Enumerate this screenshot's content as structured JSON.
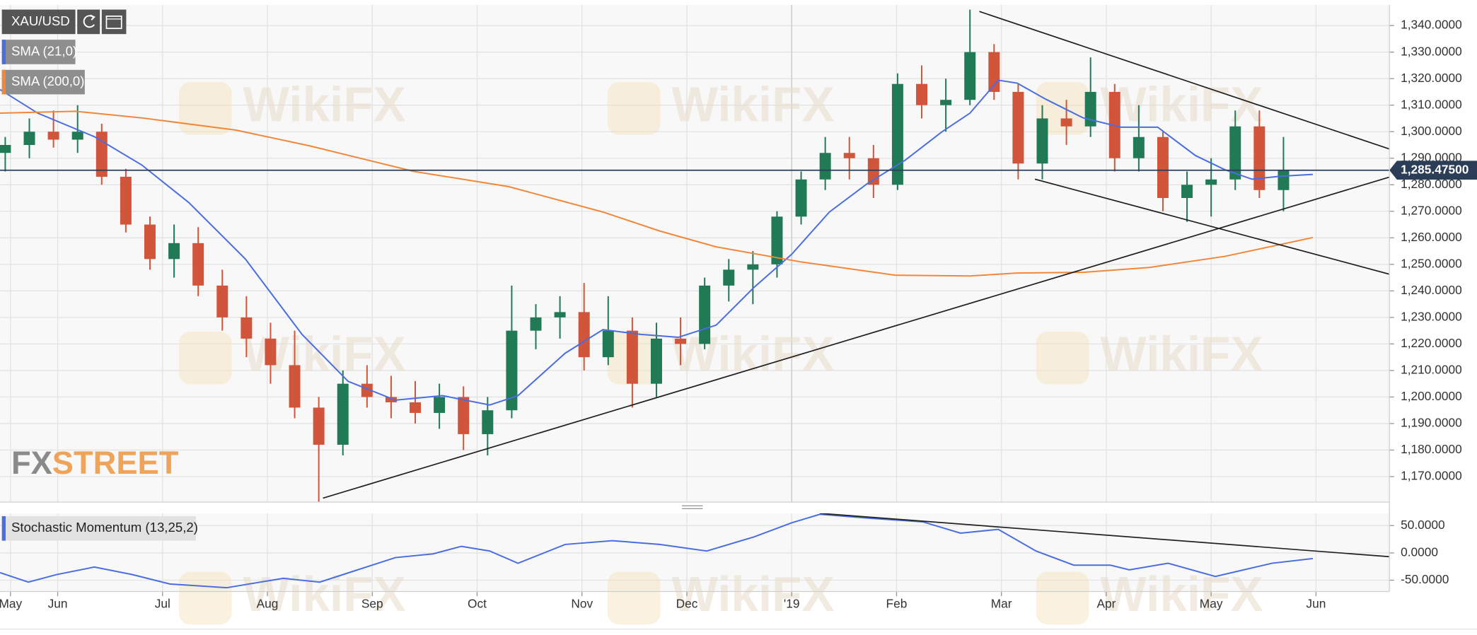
{
  "chart_data": [
    {
      "type": "candlestick",
      "title": "XAU/USD",
      "x": [
        0.5,
        0.73,
        0.96,
        1.19,
        1.42,
        1.65,
        1.88,
        2.11,
        2.34,
        2.57,
        2.8,
        3.03,
        3.26,
        3.49,
        3.72,
        3.95,
        4.18,
        4.41,
        4.64,
        4.87,
        5.1,
        5.33,
        5.56,
        5.79,
        6.02,
        6.25,
        6.48,
        6.71,
        6.94,
        7.17,
        7.4,
        7.63,
        7.86,
        8.09,
        8.32,
        8.55,
        8.78,
        9.01,
        9.24,
        9.47,
        9.7,
        9.93,
        10.16,
        10.39,
        10.62,
        10.85,
        11.08,
        11.31,
        11.54,
        11.77,
        12.0,
        12.23,
        12.46,
        12.69
      ],
      "open": [
        1292,
        1295,
        1300,
        1297,
        1300,
        1283,
        1265,
        1252,
        1258,
        1242,
        1230,
        1222,
        1212,
        1196,
        1182,
        1205,
        1200,
        1198,
        1194,
        1200,
        1186,
        1195,
        1225,
        1230,
        1232,
        1215,
        1225,
        1205,
        1222,
        1220,
        1242,
        1248,
        1250,
        1268,
        1282,
        1292,
        1290,
        1280,
        1318,
        1310,
        1312,
        1330,
        1315,
        1288,
        1305,
        1302,
        1315,
        1290,
        1298,
        1275,
        1280,
        1282,
        1302,
        1278
      ],
      "high": [
        1298,
        1305,
        1308,
        1310,
        1303,
        1286,
        1268,
        1265,
        1264,
        1248,
        1238,
        1228,
        1225,
        1200,
        1210,
        1212,
        1208,
        1206,
        1205,
        1204,
        1200,
        1242,
        1235,
        1238,
        1243,
        1238,
        1230,
        1228,
        1230,
        1245,
        1252,
        1255,
        1270,
        1285,
        1298,
        1298,
        1295,
        1322,
        1325,
        1320,
        1346,
        1333,
        1318,
        1310,
        1312,
        1328,
        1318,
        1310,
        1300,
        1285,
        1290,
        1308,
        1308,
        1298
      ],
      "low": [
        1285,
        1290,
        1294,
        1292,
        1280,
        1262,
        1248,
        1245,
        1238,
        1225,
        1215,
        1205,
        1192,
        1160,
        1178,
        1196,
        1192,
        1190,
        1188,
        1180,
        1178,
        1192,
        1218,
        1222,
        1210,
        1212,
        1196,
        1200,
        1212,
        1218,
        1236,
        1235,
        1245,
        1265,
        1278,
        1282,
        1275,
        1278,
        1305,
        1300,
        1310,
        1312,
        1282,
        1282,
        1295,
        1298,
        1285,
        1285,
        1270,
        1266,
        1268,
        1278,
        1275,
        1270
      ],
      "close": [
        1295,
        1300,
        1297,
        1300,
        1283,
        1265,
        1252,
        1258,
        1242,
        1230,
        1222,
        1212,
        1196,
        1182,
        1205,
        1200,
        1198,
        1194,
        1200,
        1186,
        1195,
        1225,
        1230,
        1232,
        1215,
        1225,
        1205,
        1222,
        1220,
        1242,
        1248,
        1250,
        1268,
        1282,
        1292,
        1290,
        1280,
        1318,
        1310,
        1312,
        1330,
        1315,
        1288,
        1305,
        1302,
        1315,
        1290,
        1298,
        1275,
        1280,
        1282,
        1302,
        1278,
        1285.5
      ],
      "up_color": "#1f7a55",
      "down_color": "#d0553b",
      "lines": [
        {
          "name": "SMA (21,0)",
          "color": "#4a6ee0",
          "x": [
            0.45,
            0.81,
            1.35,
            1.8,
            2.25,
            2.79,
            3.33,
            3.77,
            4.22,
            4.67,
            5.12,
            5.39,
            5.84,
            6.2,
            6.56,
            6.92,
            7.28,
            7.64,
            8.0,
            8.36,
            8.72,
            9.08,
            9.43,
            9.7,
            9.97,
            10.15,
            10.42,
            10.78,
            11.14,
            11.49,
            11.85,
            12.13,
            12.39,
            12.66,
            12.97
          ],
          "values": [
            1315.9,
            1307.0,
            1298.1,
            1287.5,
            1273.3,
            1252.0,
            1223.6,
            1205.9,
            1198.8,
            1200.5,
            1197.0,
            1200.5,
            1216.5,
            1225.4,
            1223.6,
            1222.5,
            1227.1,
            1241.3,
            1253.8,
            1269.7,
            1280.4,
            1289.2,
            1299.9,
            1307.0,
            1319.4,
            1318.3,
            1312.3,
            1305.2,
            1301.7,
            1301.7,
            1291.0,
            1285.7,
            1282.1,
            1283.2,
            1283.9
          ]
        },
        {
          "name": "SMA (200,0)",
          "color": "#f0873a",
          "x": [
            0.45,
            1.17,
            1.8,
            2.7,
            3.41,
            4.4,
            5.3,
            6.2,
            6.74,
            7.28,
            8.09,
            8.99,
            9.7,
            10.15,
            10.78,
            11.41,
            12.13,
            12.97
          ],
          "values": [
            1307.0,
            1307.7,
            1305.2,
            1300.6,
            1294.6,
            1285.0,
            1279.3,
            1269.7,
            1262.6,
            1256.6,
            1250.9,
            1245.9,
            1245.6,
            1246.7,
            1247.0,
            1248.8,
            1253.0,
            1260.1
          ]
        }
      ],
      "trendlines": [
        {
          "x": [
            9.79,
            13.7
          ],
          "values": [
            1345.3,
            1293.5
          ]
        },
        {
          "x": [
            10.32,
            13.7
          ],
          "values": [
            1282.1,
            1246.3
          ]
        },
        {
          "x": [
            3.53,
            13.7
          ],
          "values": [
            1161.9,
            1282.9
          ]
        }
      ],
      "last_price": {
        "value": 1285.475,
        "label": "1,285.47500"
      },
      "xlim": [
        0.45,
        13.7
      ],
      "ylim": [
        1160.4,
        1347.8
      ],
      "yticks": [
        {
          "value": 1170,
          "label": "1,170.0000"
        },
        {
          "value": 1180,
          "label": "1,180.0000"
        },
        {
          "value": 1190,
          "label": "1,190.0000"
        },
        {
          "value": 1200,
          "label": "1,200.0000"
        },
        {
          "value": 1210,
          "label": "1,210.0000"
        },
        {
          "value": 1220,
          "label": "1,220.0000"
        },
        {
          "value": 1230,
          "label": "1,230.0000"
        },
        {
          "value": 1240,
          "label": "1,240.0000"
        },
        {
          "value": 1250,
          "label": "1,250.0000"
        },
        {
          "value": 1260,
          "label": "1,260.0000"
        },
        {
          "value": 1270,
          "label": "1,270.0000"
        },
        {
          "value": 1280,
          "label": "1,280.0000"
        },
        {
          "value": 1290,
          "label": "1,290.0000"
        },
        {
          "value": 1300,
          "label": "1,300.0000"
        },
        {
          "value": 1310,
          "label": "1,310.0000"
        },
        {
          "value": 1320,
          "label": "1,320.0000"
        },
        {
          "value": 1330,
          "label": "1,330.0000"
        },
        {
          "value": 1340,
          "label": "1,340.0000"
        }
      ],
      "grid": true
    },
    {
      "type": "line",
      "title": "Stochastic Momentum (13,25,2)",
      "series": [
        {
          "color": "#4a6ee0",
          "x": [
            0.45,
            0.72,
            0.99,
            1.35,
            1.71,
            2.07,
            2.61,
            3.15,
            3.5,
            3.86,
            4.22,
            4.58,
            4.85,
            5.12,
            5.39,
            5.84,
            6.29,
            6.74,
            7.19,
            7.64,
            8.0,
            8.27,
            8.72,
            9.25,
            9.61,
            9.97,
            10.33,
            10.69,
            11.04,
            11.22,
            11.59,
            12.04,
            12.31,
            12.58,
            12.97
          ],
          "values": [
            -36.2,
            -53.5,
            -39.7,
            -25.9,
            -39.7,
            -56.9,
            -63.8,
            -46.6,
            -53.5,
            -31.0,
            -8.6,
            -1.7,
            12.1,
            3.4,
            -19.0,
            15.5,
            22.4,
            15.5,
            3.4,
            29.3,
            55.2,
            70.7,
            63.8,
            56.9,
            36.2,
            43.1,
            3.4,
            -22.4,
            -22.4,
            -31.0,
            -19.0,
            -43.1,
            -31.0,
            -19.0,
            -10.4
          ]
        }
      ],
      "trendlines": [
        {
          "x": [
            8.27,
            13.7
          ],
          "values": [
            72.4,
            -6.9
          ]
        }
      ],
      "xlim": [
        0.45,
        13.7
      ],
      "xticks": [
        {
          "value": 0.55,
          "label": "May"
        },
        {
          "value": 1,
          "label": "Jun"
        },
        {
          "value": 2,
          "label": "Jul"
        },
        {
          "value": 3,
          "label": "Aug"
        },
        {
          "value": 4,
          "label": "Sep"
        },
        {
          "value": 5,
          "label": "Oct"
        },
        {
          "value": 6,
          "label": "Nov"
        },
        {
          "value": 7,
          "label": "Dec"
        },
        {
          "value": 8,
          "label": "'19"
        },
        {
          "value": 9,
          "label": "Feb"
        },
        {
          "value": 10,
          "label": "Mar"
        },
        {
          "value": 11,
          "label": "Apr"
        },
        {
          "value": 12,
          "label": "May"
        },
        {
          "value": 13,
          "label": "Jun"
        }
      ],
      "ylim": [
        -70.7,
        72.4
      ],
      "yticks": [
        {
          "value": -50,
          "label": "-50.0000"
        },
        {
          "value": 0,
          "label": "0.0000"
        },
        {
          "value": 50,
          "label": "50.0000"
        }
      ],
      "grid": true
    }
  ],
  "watermark": "WikiFX",
  "logo": [
    "FX",
    "STREET"
  ]
}
